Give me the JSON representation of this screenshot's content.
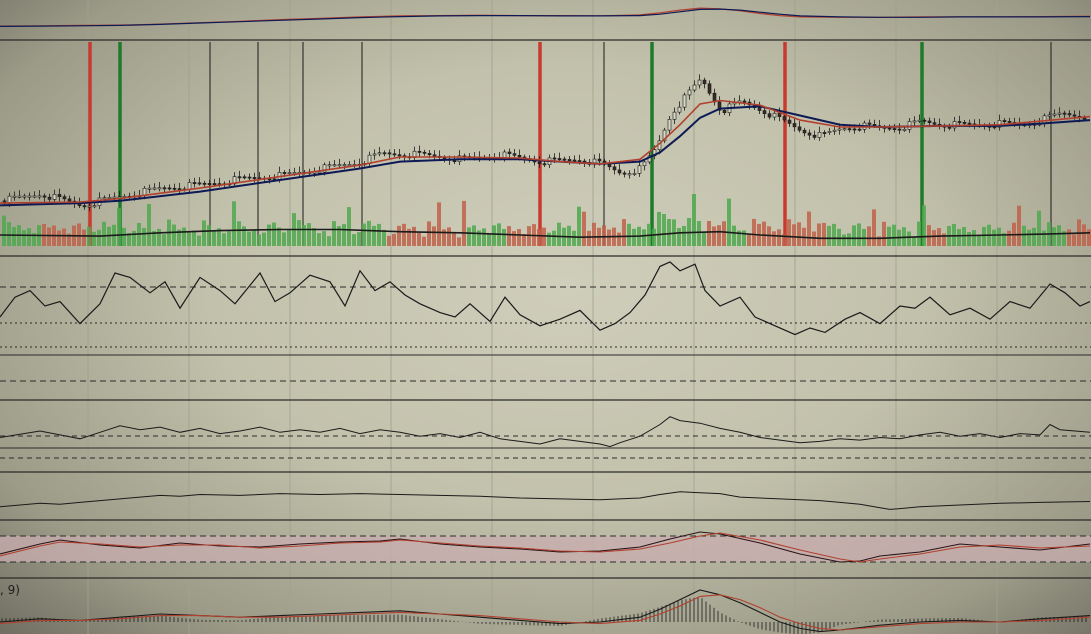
{
  "colors": {
    "up": "#4fa84f",
    "down": "#c0614a",
    "signal_buy": "#1f7a2a",
    "signal_sell": "#c83a2e",
    "ema_fast": "#b2402e",
    "ema_slow": "#0d1a55",
    "line": "#1a1a1a",
    "grid": "#9ea28f",
    "band": "#c9aeb0"
  },
  "macd_label": ", 9)",
  "chart_data": [
    {
      "type": "line",
      "panel": "overview",
      "x": [
        0,
        40,
        80,
        120,
        160,
        200,
        240,
        280,
        320,
        360,
        400,
        440,
        480,
        520,
        560,
        600,
        640,
        660,
        680,
        700,
        720,
        740,
        760,
        780,
        800,
        840,
        880,
        920,
        960,
        1000,
        1040,
        1090
      ],
      "series": [
        {
          "values": [
            35,
            36,
            37,
            38,
            41,
            45,
            49,
            54,
            58,
            62,
            65,
            66,
            67,
            66,
            66,
            65,
            68,
            74,
            82,
            88,
            86,
            80,
            72,
            66,
            62,
            61,
            61,
            62,
            62,
            62,
            63,
            64
          ]
        },
        {
          "values": [
            34,
            35,
            36,
            37,
            40,
            44,
            48,
            52,
            56,
            60,
            63,
            65,
            66,
            66,
            65,
            65,
            66,
            70,
            77,
            84,
            85,
            82,
            76,
            70,
            65,
            62,
            61,
            61,
            62,
            62,
            62,
            63
          ]
        }
      ]
    },
    {
      "type": "candlestick",
      "panel": "price",
      "signals": [
        {
          "x": 90,
          "kind": "sell"
        },
        {
          "x": 120,
          "kind": "buy"
        },
        {
          "x": 210,
          "kind": "neutral"
        },
        {
          "x": 258,
          "kind": "neutral"
        },
        {
          "x": 303,
          "kind": "neutral"
        },
        {
          "x": 362,
          "kind": "neutral"
        },
        {
          "x": 540,
          "kind": "sell"
        },
        {
          "x": 604,
          "kind": "neutral"
        },
        {
          "x": 652,
          "kind": "buy"
        },
        {
          "x": 785,
          "kind": "sell"
        },
        {
          "x": 922,
          "kind": "buy"
        },
        {
          "x": 1051,
          "kind": "neutral"
        }
      ],
      "price_path": [
        [
          0,
          34
        ],
        [
          40,
          40
        ],
        [
          80,
          30
        ],
        [
          120,
          38
        ],
        [
          160,
          45
        ],
        [
          200,
          48
        ],
        [
          240,
          53
        ],
        [
          280,
          56
        ],
        [
          320,
          62
        ],
        [
          360,
          68
        ],
        [
          380,
          75
        ],
        [
          420,
          74
        ],
        [
          460,
          70
        ],
        [
          500,
          74
        ],
        [
          540,
          68
        ],
        [
          580,
          70
        ],
        [
          600,
          66
        ],
        [
          620,
          58
        ],
        [
          640,
          62
        ],
        [
          655,
          80
        ],
        [
          670,
          110
        ],
        [
          690,
          130
        ],
        [
          700,
          140
        ],
        [
          710,
          125
        ],
        [
          720,
          112
        ],
        [
          740,
          120
        ],
        [
          760,
          113
        ],
        [
          780,
          104
        ],
        [
          800,
          95
        ],
        [
          820,
          90
        ],
        [
          840,
          97
        ],
        [
          860,
          99
        ],
        [
          880,
          97
        ],
        [
          900,
          98
        ],
        [
          920,
          103
        ],
        [
          940,
          100
        ],
        [
          980,
          100
        ],
        [
          1000,
          101
        ],
        [
          1020,
          100
        ],
        [
          1040,
          104
        ],
        [
          1060,
          110
        ],
        [
          1090,
          107
        ]
      ],
      "ema_fast_path": [
        [
          0,
          32
        ],
        [
          80,
          33
        ],
        [
          120,
          36
        ],
        [
          200,
          45
        ],
        [
          280,
          55
        ],
        [
          360,
          65
        ],
        [
          400,
          72
        ],
        [
          460,
          72
        ],
        [
          520,
          71
        ],
        [
          560,
          68
        ],
        [
          600,
          66
        ],
        [
          640,
          70
        ],
        [
          660,
          84
        ],
        [
          680,
          100
        ],
        [
          700,
          118
        ],
        [
          720,
          121
        ],
        [
          760,
          117
        ],
        [
          800,
          104
        ],
        [
          840,
          98
        ],
        [
          880,
          98
        ],
        [
          940,
          99
        ],
        [
          1000,
          100
        ],
        [
          1040,
          103
        ],
        [
          1090,
          107
        ]
      ],
      "ema_slow_path": [
        [
          0,
          30
        ],
        [
          80,
          32
        ],
        [
          120,
          34
        ],
        [
          200,
          42
        ],
        [
          280,
          52
        ],
        [
          360,
          62
        ],
        [
          400,
          68
        ],
        [
          460,
          70
        ],
        [
          520,
          70
        ],
        [
          560,
          68
        ],
        [
          600,
          66
        ],
        [
          640,
          68
        ],
        [
          660,
          76
        ],
        [
          680,
          90
        ],
        [
          700,
          106
        ],
        [
          720,
          114
        ],
        [
          760,
          116
        ],
        [
          800,
          108
        ],
        [
          840,
          100
        ],
        [
          880,
          98
        ],
        [
          940,
          99
        ],
        [
          1000,
          99
        ],
        [
          1040,
          101
        ],
        [
          1090,
          104
        ]
      ],
      "volume_ma": [
        [
          0,
          10
        ],
        [
          100,
          9
        ],
        [
          160,
          12
        ],
        [
          220,
          14
        ],
        [
          280,
          15
        ],
        [
          340,
          15
        ],
        [
          400,
          13
        ],
        [
          460,
          12
        ],
        [
          520,
          10
        ],
        [
          580,
          8
        ],
        [
          640,
          9
        ],
        [
          680,
          12
        ],
        [
          720,
          13
        ],
        [
          760,
          10
        ],
        [
          820,
          7
        ],
        [
          880,
          7
        ],
        [
          940,
          9
        ],
        [
          1000,
          10
        ],
        [
          1050,
          11
        ],
        [
          1090,
          12
        ]
      ]
    },
    {
      "type": "line",
      "panel": "oscillator_1",
      "x": [
        0,
        15,
        30,
        45,
        60,
        80,
        100,
        115,
        130,
        150,
        165,
        180,
        200,
        220,
        235,
        260,
        275,
        290,
        310,
        330,
        345,
        360,
        375,
        390,
        405,
        420,
        440,
        455,
        470,
        490,
        505,
        520,
        540,
        560,
        580,
        600,
        615,
        630,
        645,
        660,
        670,
        680,
        695,
        705,
        720,
        740,
        755,
        775,
        795,
        810,
        825,
        845,
        860,
        880,
        900,
        915,
        930,
        950,
        970,
        990,
        1010,
        1030,
        1050,
        1065,
        1080,
        1090
      ],
      "series": [
        {
          "values": [
            50,
            68,
            74,
            60,
            64,
            44,
            62,
            90,
            86,
            72,
            82,
            58,
            86,
            74,
            62,
            90,
            64,
            72,
            88,
            82,
            60,
            92,
            74,
            82,
            70,
            62,
            54,
            50,
            62,
            46,
            68,
            52,
            42,
            48,
            56,
            38,
            44,
            54,
            70,
            96,
            100,
            92,
            98,
            74,
            60,
            68,
            50,
            42,
            34,
            40,
            36,
            48,
            54,
            44,
            60,
            58,
            68,
            52,
            58,
            48,
            64,
            58,
            80,
            72,
            60,
            64
          ]
        }
      ]
    },
    {
      "type": "line",
      "panel": "oscillator_2",
      "x": [
        0,
        20,
        40,
        60,
        80,
        100,
        120,
        140,
        160,
        180,
        200,
        220,
        240,
        260,
        280,
        300,
        320,
        340,
        360,
        380,
        400,
        420,
        440,
        460,
        480,
        500,
        520,
        540,
        560,
        580,
        600,
        610,
        620,
        640,
        660,
        670,
        680,
        700,
        720,
        740,
        760,
        780,
        800,
        820,
        840,
        860,
        880,
        900,
        920,
        940,
        960,
        980,
        1000,
        1020,
        1040,
        1050,
        1060,
        1075,
        1090
      ],
      "series": [
        {
          "values": [
            50,
            55,
            60,
            54,
            48,
            58,
            68,
            62,
            66,
            58,
            64,
            56,
            60,
            66,
            58,
            62,
            58,
            64,
            56,
            62,
            58,
            52,
            56,
            50,
            58,
            48,
            44,
            40,
            48,
            44,
            40,
            36,
            42,
            52,
            70,
            82,
            76,
            72,
            64,
            58,
            50,
            46,
            42,
            44,
            48,
            46,
            50,
            48,
            54,
            58,
            52,
            56,
            50,
            56,
            54,
            70,
            62,
            60,
            58
          ]
        }
      ]
    },
    {
      "type": "line",
      "panel": "oscillator_3",
      "x": [
        0,
        20,
        40,
        60,
        80,
        100,
        120,
        140,
        160,
        180,
        200,
        240,
        280,
        320,
        360,
        400,
        440,
        480,
        520,
        560,
        600,
        640,
        660,
        680,
        700,
        720,
        740,
        760,
        780,
        800,
        820,
        840,
        860,
        880,
        890,
        900,
        920,
        940,
        960,
        1000,
        1040,
        1090
      ],
      "series": [
        {
          "values": [
            30,
            34,
            38,
            36,
            40,
            44,
            48,
            52,
            56,
            54,
            58,
            56,
            60,
            58,
            60,
            58,
            56,
            54,
            50,
            48,
            46,
            50,
            58,
            64,
            62,
            60,
            52,
            50,
            48,
            46,
            44,
            40,
            36,
            28,
            24,
            26,
            30,
            32,
            34,
            38,
            40,
            42
          ]
        }
      ]
    },
    {
      "type": "line",
      "panel": "oscillator_4",
      "x": [
        0,
        40,
        60,
        100,
        140,
        180,
        220,
        260,
        300,
        340,
        380,
        400,
        440,
        480,
        520,
        560,
        600,
        640,
        670,
        700,
        720,
        760,
        800,
        840,
        860,
        880,
        920,
        960,
        1000,
        1040,
        1090
      ],
      "series": [
        {
          "values": [
            40,
            60,
            68,
            58,
            52,
            62,
            56,
            54,
            60,
            64,
            66,
            70,
            60,
            54,
            50,
            44,
            46,
            54,
            70,
            84,
            80,
            62,
            40,
            24,
            26,
            36,
            44,
            60,
            54,
            48,
            60
          ]
        },
        {
          "values": [
            36,
            56,
            64,
            60,
            54,
            58,
            58,
            52,
            56,
            62,
            64,
            68,
            62,
            56,
            52,
            46,
            44,
            50,
            62,
            76,
            82,
            68,
            48,
            30,
            24,
            30,
            40,
            54,
            58,
            52,
            56
          ]
        }
      ]
    },
    {
      "type": "bar",
      "panel": "macd",
      "x": [
        0,
        40,
        80,
        120,
        160,
        200,
        240,
        280,
        320,
        360,
        400,
        440,
        480,
        520,
        560,
        600,
        640,
        660,
        680,
        700,
        720,
        740,
        760,
        780,
        800,
        820,
        840,
        880,
        920,
        960,
        1000,
        1040,
        1090
      ],
      "series": [
        {
          "values": [
            0,
            2,
            1,
            3,
            5,
            4,
            3,
            4,
            5,
            6,
            7,
            5,
            3,
            1,
            -1,
            0,
            3,
            8,
            14,
            20,
            17,
            12,
            6,
            0,
            -4,
            -6,
            -5,
            -2,
            0,
            1,
            0,
            2,
            4
          ]
        },
        {
          "values": [
            -1,
            1,
            1,
            2,
            4,
            4,
            3,
            3,
            4,
            5,
            6,
            5,
            4,
            2,
            0,
            -1,
            1,
            5,
            10,
            16,
            17,
            14,
            9,
            3,
            -1,
            -4,
            -5,
            -3,
            -1,
            0,
            0,
            1,
            3
          ]
        }
      ]
    }
  ]
}
